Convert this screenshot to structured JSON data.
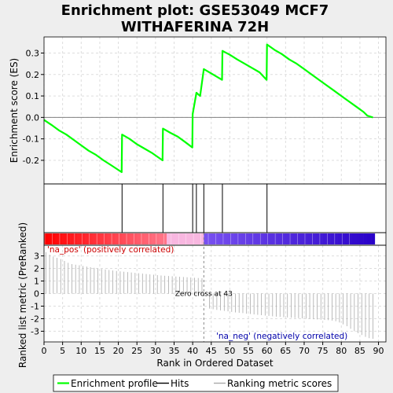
{
  "chart_data": {
    "type": "line",
    "title_line1": "Enrichment plot: GSE53049 MCF7",
    "title_line2": "WITHAFERINA 72H",
    "xlabel": "Rank in Ordered Dataset",
    "xlim": [
      0,
      92
    ],
    "x_ticks": [
      0,
      5,
      10,
      15,
      20,
      25,
      30,
      35,
      40,
      45,
      50,
      55,
      60,
      65,
      70,
      75,
      80,
      85,
      90
    ],
    "es_panel": {
      "ylabel": "Enrichment score (ES)",
      "ylim": [
        -0.31,
        0.375
      ],
      "y_ticks": [
        -0.2,
        -0.1,
        0.0,
        0.1,
        0.2,
        0.3
      ],
      "series": [
        {
          "name": "Enrichment profile",
          "color": "#00ff00",
          "x": [
            0,
            2,
            4,
            6,
            8,
            10,
            12,
            14,
            16,
            18,
            20.9,
            21,
            23,
            25,
            27,
            29,
            31.9,
            32,
            34,
            36,
            38,
            39.9,
            40,
            41,
            42,
            43,
            45,
            47.9,
            48,
            50,
            52,
            54,
            56,
            58,
            59.9,
            60,
            62,
            64,
            66,
            68,
            70,
            72,
            74,
            76,
            78,
            80,
            82,
            84,
            86,
            87,
            88.5
          ],
          "y": [
            -0.012,
            -0.035,
            -0.06,
            -0.08,
            -0.105,
            -0.13,
            -0.155,
            -0.175,
            -0.2,
            -0.222,
            -0.255,
            -0.08,
            -0.1,
            -0.125,
            -0.145,
            -0.165,
            -0.2,
            -0.052,
            -0.072,
            -0.09,
            -0.115,
            -0.14,
            0.015,
            0.115,
            0.1,
            0.225,
            0.205,
            0.175,
            0.31,
            0.292,
            0.27,
            0.25,
            0.23,
            0.21,
            0.175,
            0.34,
            0.315,
            0.295,
            0.27,
            0.25,
            0.225,
            0.2,
            0.175,
            0.15,
            0.125,
            0.1,
            0.075,
            0.05,
            0.025,
            0.008,
            0.0
          ]
        }
      ]
    },
    "hits": {
      "name": "Hits",
      "color": "#000000",
      "positions": [
        21,
        32,
        40,
        41,
        43,
        48,
        60
      ]
    },
    "color_bar": {
      "positive_color": "#ff0000",
      "middle_color": "#f8b7e0",
      "negative_color": "#0000ff",
      "length": 89
    },
    "rank_panel": {
      "ylabel": "Ranked list metric (PreRanked)",
      "ylim": [
        -3.85,
        3.85
      ],
      "y_ticks": [
        -3,
        -2,
        -1,
        0,
        1,
        2,
        3
      ],
      "series_name": "Ranking metric scores",
      "color": "#aaaaaa",
      "values": [
        3.3,
        3.1,
        2.95,
        2.85,
        2.75,
        2.6,
        2.45,
        2.35,
        2.3,
        2.25,
        2.2,
        2.15,
        2.1,
        2.05,
        2.0,
        1.96,
        1.92,
        1.88,
        1.84,
        1.8,
        1.77,
        1.74,
        1.71,
        1.68,
        1.65,
        1.62,
        1.59,
        1.56,
        1.53,
        1.5,
        1.47,
        1.44,
        1.42,
        1.4,
        1.38,
        1.36,
        1.34,
        1.32,
        1.3,
        1.28,
        1.26,
        1.24,
        1.22,
        0.05,
        -1.2,
        -1.25,
        -1.3,
        -1.34,
        -1.38,
        -1.42,
        -1.46,
        -1.5,
        -1.53,
        -1.56,
        -1.6,
        -1.63,
        -1.66,
        -1.69,
        -1.72,
        -1.75,
        -1.78,
        -1.81,
        -1.84,
        -1.86,
        -1.88,
        -1.9,
        -1.92,
        -1.94,
        -1.96,
        -1.98,
        -2.0,
        -2.02,
        -2.04,
        -2.06,
        -2.08,
        -2.1,
        -2.12,
        -2.15,
        -2.2,
        -2.3,
        -2.45,
        -2.6,
        -2.8,
        -3.0,
        -3.15,
        -3.3,
        -3.45,
        -3.55,
        -3.6
      ],
      "zero_cross_rank": 43,
      "zero_cross_label": "Zero cross at 43",
      "pos_label": "'na_pos' (positively correlated)",
      "pos_label_color": "#cc0000",
      "neg_label": "'na_neg' (negatively correlated)",
      "neg_label_color": "#0000aa"
    },
    "legend": {
      "placement": "bottom",
      "items": [
        {
          "label": "Enrichment profile",
          "color": "#00ff00",
          "kind": "line"
        },
        {
          "label": "Hits",
          "color": "#000000",
          "kind": "line"
        },
        {
          "label": "Ranking metric scores",
          "color": "#aaaaaa",
          "kind": "line"
        }
      ]
    },
    "grid": true
  }
}
